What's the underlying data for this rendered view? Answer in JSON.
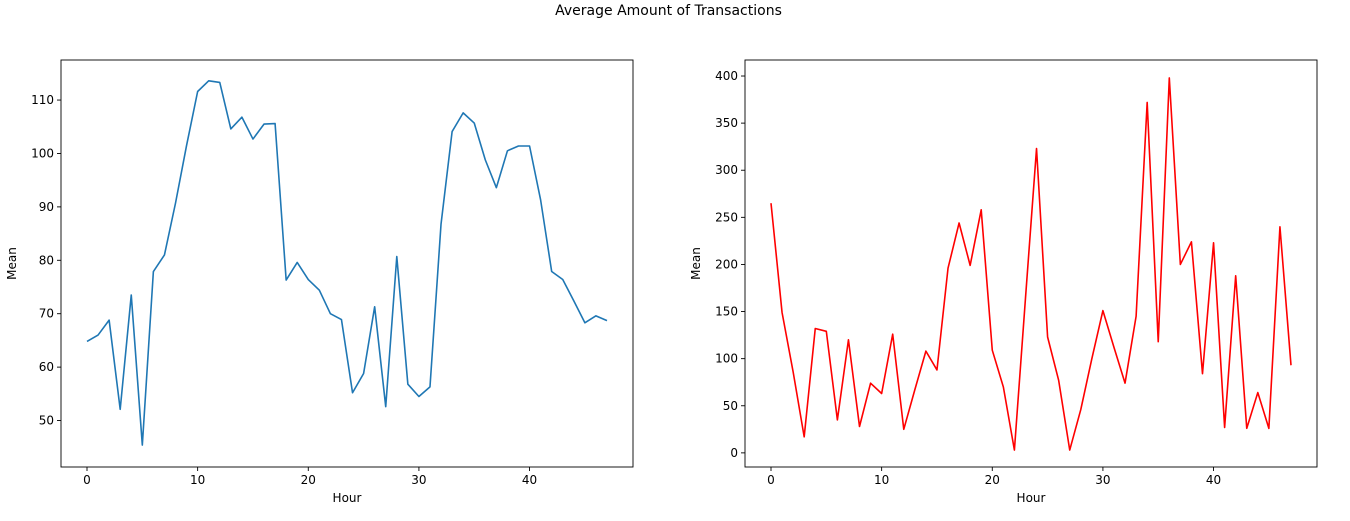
{
  "figure": {
    "title": "Average Amount of Transactions"
  },
  "chart_data": [
    {
      "type": "line",
      "title": "",
      "xlabel": "Hour",
      "ylabel": "Mean",
      "xlim": [
        -2.35,
        49.35
      ],
      "ylim": [
        41.3,
        117.5
      ],
      "xticks": [
        0,
        10,
        20,
        30,
        40
      ],
      "yticks": [
        50,
        60,
        70,
        80,
        90,
        100,
        110
      ],
      "grid": false,
      "color": "#1f77b4",
      "series": [
        {
          "x": [
            0,
            1,
            2,
            3,
            4,
            5,
            6,
            7,
            8,
            9,
            10,
            11,
            12,
            13,
            14,
            15,
            16,
            17,
            18,
            19,
            20,
            21,
            22,
            23,
            24,
            25,
            26,
            27,
            28,
            29,
            30,
            31,
            32,
            33,
            34,
            35,
            36,
            37,
            38,
            39,
            40,
            41,
            42,
            43,
            44,
            45,
            46,
            47
          ],
          "values": [
            64.8,
            66.0,
            68.8,
            52.1,
            73.5,
            45.4,
            77.9,
            81.0,
            90.7,
            101.5,
            111.6,
            113.6,
            113.3,
            104.6,
            106.8,
            102.7,
            105.5,
            105.6,
            76.3,
            79.6,
            76.4,
            74.4,
            70.0,
            68.9,
            55.2,
            58.8,
            71.3,
            52.6,
            80.7,
            56.8,
            54.5,
            56.3,
            86.8,
            104.1,
            107.6,
            105.7,
            98.8,
            93.6,
            100.5,
            101.4,
            101.4,
            91.3,
            77.9,
            76.4,
            72.4,
            68.3,
            69.6,
            68.7
          ]
        }
      ]
    },
    {
      "type": "line",
      "title": "",
      "xlabel": "Hour",
      "ylabel": "Mean",
      "xlim": [
        -2.35,
        49.35
      ],
      "ylim": [
        -15,
        417
      ],
      "xticks": [
        0,
        10,
        20,
        30,
        40
      ],
      "yticks": [
        0,
        50,
        100,
        150,
        200,
        250,
        300,
        350,
        400
      ],
      "grid": false,
      "color": "#ff0000",
      "series": [
        {
          "x": [
            0,
            1,
            2,
            3,
            4,
            5,
            6,
            7,
            8,
            9,
            10,
            11,
            12,
            13,
            14,
            15,
            16,
            17,
            18,
            19,
            20,
            21,
            22,
            23,
            24,
            25,
            26,
            27,
            28,
            29,
            30,
            31,
            32,
            33,
            34,
            35,
            36,
            37,
            38,
            39,
            40,
            41,
            42,
            43,
            44,
            45,
            46,
            47
          ],
          "values": [
            265,
            149,
            86,
            17,
            132,
            129,
            35,
            120,
            28,
            74,
            63,
            126,
            25,
            67,
            108,
            88,
            196,
            244,
            199,
            258,
            109,
            70,
            3,
            164,
            323,
            123,
            77,
            3,
            46,
            100,
            151,
            112,
            74,
            145,
            372,
            118,
            398,
            200,
            224,
            84,
            223,
            27,
            188,
            26,
            64,
            26,
            240,
            93
          ]
        }
      ]
    }
  ]
}
